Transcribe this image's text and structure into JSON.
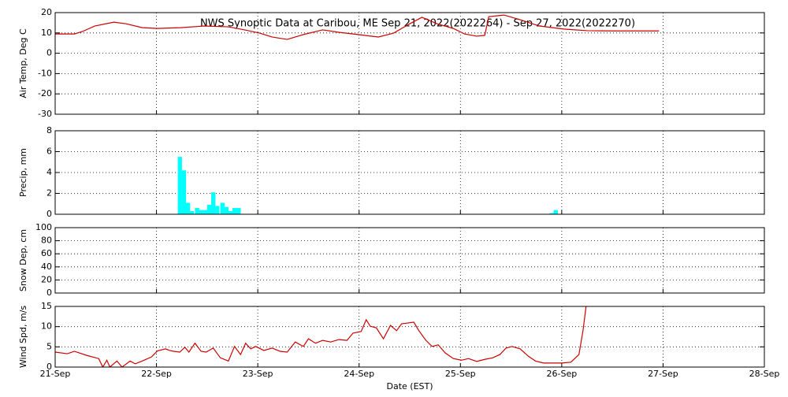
{
  "chart_data": [
    {
      "type": "line",
      "title": "NWS Synoptic Data at Caribou, ME   Sep 21, 2022(2022264) - Sep 27, 2022(2022270)",
      "y_label": "Air Temp, Deg C",
      "color": "#cc0000",
      "grid": true,
      "ylim": [
        -30,
        20
      ],
      "yticks": [
        -30,
        -20,
        -10,
        0,
        10,
        20
      ],
      "xlim": [
        0,
        7
      ],
      "xticks": [
        0,
        1,
        2,
        3,
        4,
        5,
        6,
        7
      ],
      "x": [
        0,
        0.19,
        0.27,
        0.39,
        0.58,
        0.7,
        0.86,
        1.01,
        1.24,
        1.47,
        1.71,
        1.87,
        2.02,
        2.14,
        2.29,
        2.45,
        2.64,
        2.8,
        2.99,
        3.19,
        3.34,
        3.5,
        3.62,
        3.77,
        3.93,
        4.04,
        4.16,
        4.24,
        4.28,
        4.43,
        4.59,
        4.78,
        5.02,
        5.25,
        5.52,
        5.96
      ],
      "values": [
        9.5,
        9.5,
        10.7,
        13.4,
        15.3,
        14.5,
        12.6,
        12.2,
        12.6,
        13.4,
        13,
        11.5,
        9.9,
        8,
        6.8,
        9.2,
        11.5,
        10.3,
        9.2,
        8,
        9.9,
        14.5,
        17.7,
        14.5,
        12.2,
        9.5,
        8.4,
        8.8,
        18,
        18.8,
        16.5,
        13.4,
        11.9,
        11.1,
        11,
        11
      ]
    },
    {
      "type": "bar",
      "y_label": "Precip, mm",
      "color": "#00ffff",
      "grid": true,
      "ylim": [
        0,
        8
      ],
      "yticks": [
        0,
        2,
        4,
        6,
        8
      ],
      "xlim": [
        0,
        7
      ],
      "xticks": [
        0,
        1,
        2,
        3,
        4,
        5,
        6,
        7
      ],
      "x": [
        1.21,
        1.25,
        1.29,
        1.33,
        1.38,
        1.42,
        1.46,
        1.5,
        1.54,
        1.58,
        1.63,
        1.67,
        1.71,
        1.75,
        1.79,
        4.88,
        4.92
      ],
      "values": [
        5.5,
        4.2,
        1.1,
        0.3,
        0.6,
        0.4,
        0.4,
        0.9,
        2.1,
        0.8,
        1.1,
        0.7,
        0.3,
        0.6,
        0.6,
        0.1,
        0.4
      ]
    },
    {
      "type": "line",
      "y_label": "Snow Dep, cm",
      "color": "#cc0000",
      "grid": true,
      "ylim": [
        0,
        100
      ],
      "yticks": [
        0,
        20,
        40,
        60,
        80,
        100
      ],
      "xlim": [
        0,
        7
      ],
      "xticks": [
        0,
        1,
        2,
        3,
        4,
        5,
        6,
        7
      ],
      "x": [],
      "values": []
    },
    {
      "type": "line",
      "y_label": "Wind Spd, m/s",
      "x_label": "Date (EST)",
      "color": "#cc0000",
      "grid": true,
      "ylim": [
        0,
        15
      ],
      "yticks": [
        0,
        5,
        10,
        15
      ],
      "xlim": [
        0,
        7
      ],
      "xticks": [
        {
          "value": 0,
          "label": "21-Sep"
        },
        {
          "value": 1,
          "label": "22-Sep"
        },
        {
          "value": 2,
          "label": "23-Sep"
        },
        {
          "value": 3,
          "label": "24-Sep"
        },
        {
          "value": 4,
          "label": "25-Sep"
        },
        {
          "value": 5,
          "label": "26-Sep"
        },
        {
          "value": 6,
          "label": "27-Sep"
        },
        {
          "value": 7,
          "label": "28-Sep"
        }
      ],
      "x": [
        0,
        0.12,
        0.19,
        0.31,
        0.43,
        0.47,
        0.51,
        0.54,
        0.61,
        0.66,
        0.74,
        0.79,
        0.86,
        0.95,
        1.01,
        1.09,
        1.13,
        1.17,
        1.23,
        1.28,
        1.32,
        1.38,
        1.44,
        1.49,
        1.56,
        1.63,
        1.71,
        1.77,
        1.83,
        1.88,
        1.93,
        1.98,
        2.06,
        2.14,
        2.22,
        2.29,
        2.37,
        2.45,
        2.5,
        2.57,
        2.64,
        2.72,
        2.8,
        2.88,
        2.94,
        3.02,
        3.07,
        3.11,
        3.17,
        3.24,
        3.31,
        3.37,
        3.42,
        3.48,
        3.54,
        3.59,
        3.66,
        3.72,
        3.78,
        3.85,
        3.93,
        4.01,
        4.08,
        4.16,
        4.24,
        4.32,
        4.39,
        4.45,
        4.51,
        4.59,
        4.67,
        4.74,
        4.82,
        4.9,
        5.0,
        5.09,
        5.17,
        5.21,
        5.24
      ],
      "values": [
        3.7,
        3.3,
        3.9,
        2.9,
        2.1,
        0,
        1.7,
        0,
        1.5,
        0,
        1.5,
        0.8,
        1.5,
        2.5,
        4,
        4.5,
        4.1,
        3.9,
        3.7,
        4.9,
        3.7,
        5.9,
        3.9,
        3.7,
        4.7,
        2.3,
        1.5,
        5.1,
        3.1,
        5.9,
        4.5,
        5.1,
        4.1,
        4.7,
        3.9,
        3.7,
        6.2,
        5.1,
        7,
        5.9,
        6.6,
        6.2,
        6.8,
        6.6,
        8.4,
        8.8,
        11.7,
        10.1,
        9.7,
        7,
        10.3,
        9,
        10.7,
        10.9,
        11.1,
        9,
        6.6,
        5.1,
        5.5,
        3.5,
        2.1,
        1.7,
        2.1,
        1.4,
        1.9,
        2.3,
        3.1,
        4.7,
        5.1,
        4.5,
        2.7,
        1.5,
        1,
        1,
        1,
        1.2,
        3.1,
        9,
        15
      ]
    }
  ]
}
